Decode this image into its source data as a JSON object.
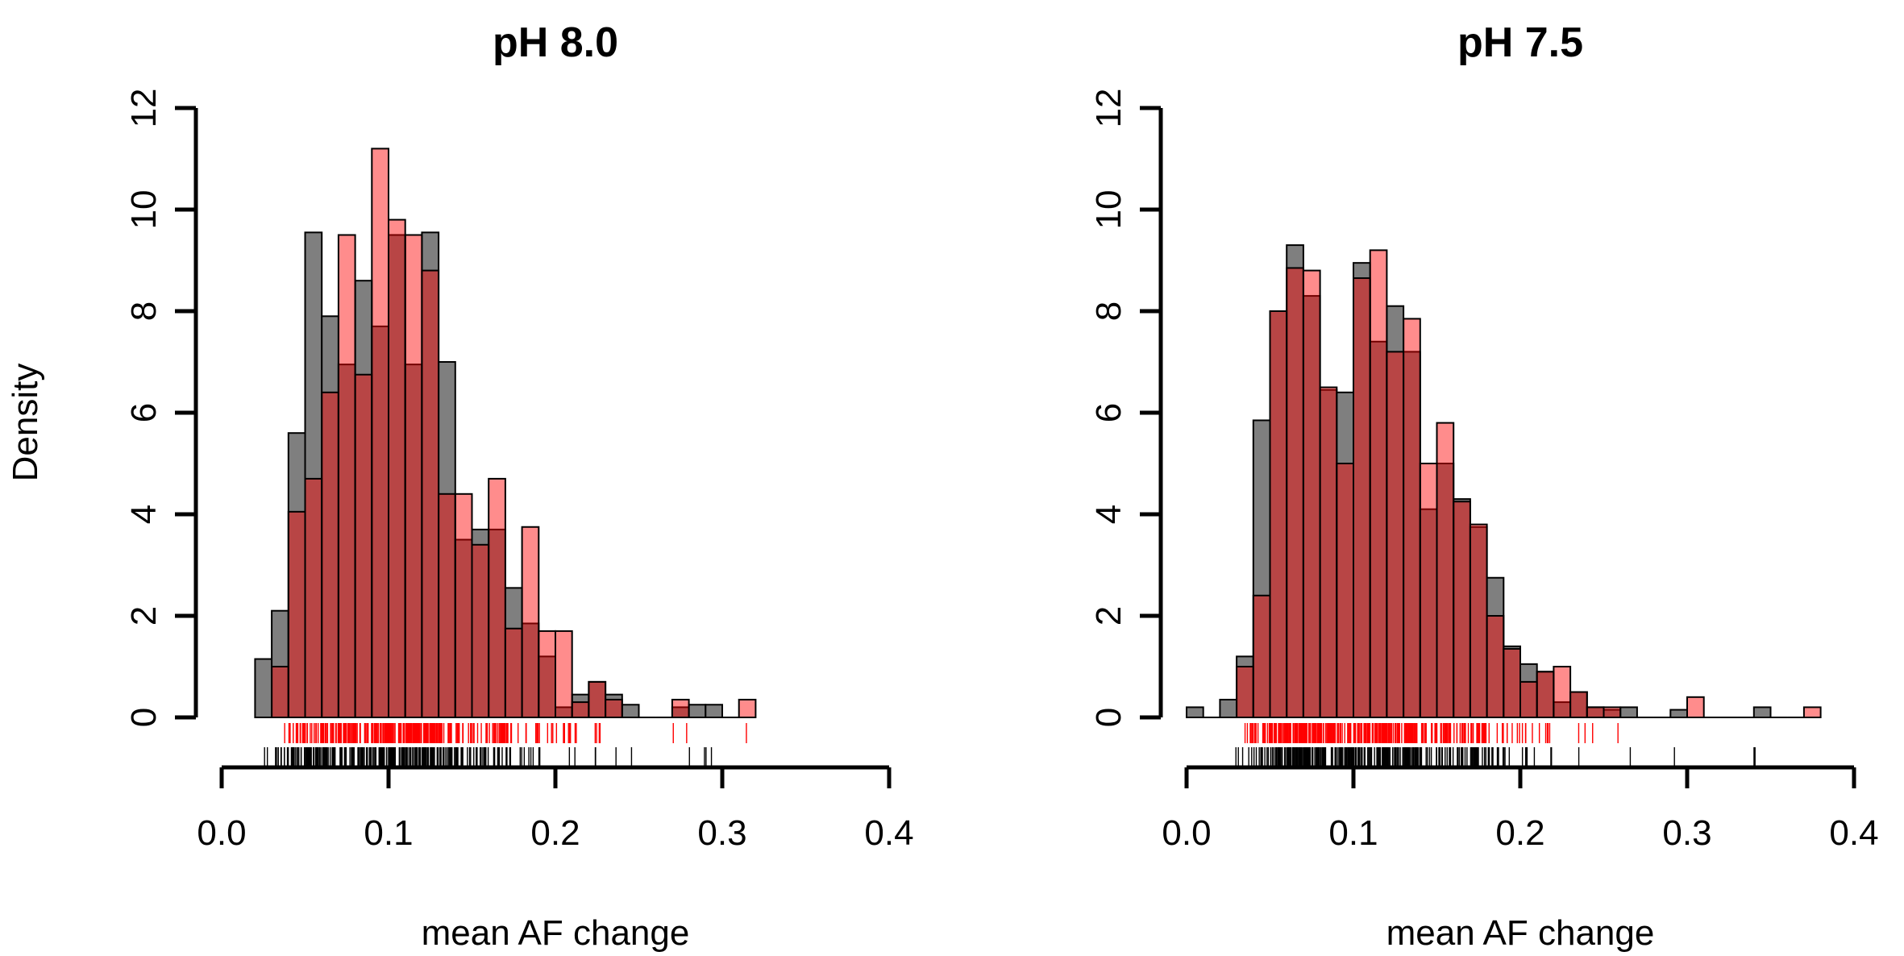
{
  "figure": {
    "shared_ylabel": "Density"
  },
  "colors": {
    "grey_bars": "#7f7f7f",
    "red_bars": "#ff8080",
    "overlap": "#7f4040",
    "rug_red": "#ff0000",
    "rug_black": "#000000"
  },
  "chart_data": [
    {
      "type": "histogram",
      "title": "pH 8.0",
      "xlabel": "mean AF change",
      "ylabel": "Density",
      "xlim": [
        0,
        0.4
      ],
      "ylim": [
        0,
        12
      ],
      "xticks": [
        "0.0",
        "0.1",
        "0.2",
        "0.3",
        "0.4"
      ],
      "yticks": [
        "0",
        "2",
        "4",
        "6",
        "8",
        "10",
        "12"
      ],
      "bin_width": 0.01,
      "grey_series": {
        "bin_starts": [
          0.02,
          0.03,
          0.04,
          0.05,
          0.06,
          0.07,
          0.08,
          0.09,
          0.1,
          0.11,
          0.12,
          0.13,
          0.14,
          0.15,
          0.16,
          0.17,
          0.18,
          0.19,
          0.2,
          0.21,
          0.22,
          0.23,
          0.24,
          0.25,
          0.26,
          0.27,
          0.28,
          0.29,
          0.3
        ],
        "values": [
          1.15,
          2.1,
          5.6,
          9.55,
          7.9,
          6.95,
          8.6,
          7.7,
          9.5,
          6.95,
          9.55,
          7.0,
          3.5,
          3.7,
          3.7,
          2.55,
          1.85,
          1.2,
          0.2,
          0.45,
          0.7,
          0.45,
          0.25,
          0,
          0,
          0.2,
          0.25,
          0.25,
          0
        ]
      },
      "red_series": {
        "bin_starts": [
          0.02,
          0.03,
          0.04,
          0.05,
          0.06,
          0.07,
          0.08,
          0.09,
          0.1,
          0.11,
          0.12,
          0.13,
          0.14,
          0.15,
          0.16,
          0.17,
          0.18,
          0.19,
          0.2,
          0.21,
          0.22,
          0.23,
          0.24,
          0.25,
          0.26,
          0.27,
          0.28,
          0.29,
          0.3,
          0.31
        ],
        "values": [
          0,
          1.0,
          4.05,
          4.7,
          6.4,
          9.5,
          6.75,
          11.2,
          9.8,
          9.5,
          8.8,
          4.4,
          4.4,
          3.4,
          4.7,
          1.75,
          3.75,
          1.7,
          1.7,
          0.3,
          0.7,
          0.35,
          0,
          0,
          0,
          0.35,
          0,
          0,
          0,
          0.35
        ]
      },
      "rug_red_range": [
        0.03,
        0.32
      ],
      "rug_black_range": [
        0.02,
        0.3
      ]
    },
    {
      "type": "histogram",
      "title": "pH 7.5",
      "xlabel": "mean AF change",
      "ylabel": "Density",
      "xlim": [
        0,
        0.4
      ],
      "ylim": [
        0,
        12
      ],
      "xticks": [
        "0.0",
        "0.1",
        "0.2",
        "0.3",
        "0.4"
      ],
      "yticks": [
        "0",
        "2",
        "4",
        "6",
        "8",
        "10",
        "12"
      ],
      "bin_width": 0.01,
      "grey_series": {
        "bin_starts": [
          0.0,
          0.01,
          0.02,
          0.03,
          0.04,
          0.05,
          0.06,
          0.07,
          0.08,
          0.09,
          0.1,
          0.11,
          0.12,
          0.13,
          0.14,
          0.15,
          0.16,
          0.17,
          0.18,
          0.19,
          0.2,
          0.21,
          0.22,
          0.23,
          0.24,
          0.25,
          0.26,
          0.27,
          0.28,
          0.29,
          0.3,
          0.31,
          0.32,
          0.33,
          0.34,
          0.35,
          0.36,
          0.37
        ],
        "values": [
          0.2,
          0,
          0.35,
          1.2,
          5.85,
          8.0,
          9.3,
          8.3,
          6.45,
          6.4,
          8.95,
          7.4,
          8.1,
          7.2,
          4.1,
          5.0,
          4.3,
          3.75,
          2.75,
          1.4,
          1.05,
          0.9,
          0.3,
          0.5,
          0.2,
          0.15,
          0.2,
          0,
          0,
          0.15,
          0,
          0,
          0,
          0,
          0.2,
          0,
          0,
          0
        ]
      },
      "red_series": {
        "bin_starts": [
          0.0,
          0.01,
          0.02,
          0.03,
          0.04,
          0.05,
          0.06,
          0.07,
          0.08,
          0.09,
          0.1,
          0.11,
          0.12,
          0.13,
          0.14,
          0.15,
          0.16,
          0.17,
          0.18,
          0.19,
          0.2,
          0.21,
          0.22,
          0.23,
          0.24,
          0.25,
          0.26,
          0.27,
          0.28,
          0.29,
          0.3,
          0.31,
          0.32,
          0.33,
          0.34,
          0.35,
          0.36,
          0.37
        ],
        "values": [
          0,
          0,
          0,
          1.0,
          2.4,
          8.0,
          8.85,
          8.8,
          6.5,
          5.0,
          8.65,
          9.2,
          7.2,
          7.85,
          5.0,
          5.8,
          4.25,
          3.8,
          2.0,
          1.35,
          0.7,
          0.9,
          1.0,
          0.5,
          0.2,
          0.2,
          0,
          0,
          0,
          0,
          0.4,
          0,
          0,
          0,
          0,
          0,
          0,
          0.2
        ]
      },
      "rug_red_range": [
        0.035,
        0.375
      ],
      "rug_black_range": [
        0.005,
        0.345
      ]
    }
  ]
}
